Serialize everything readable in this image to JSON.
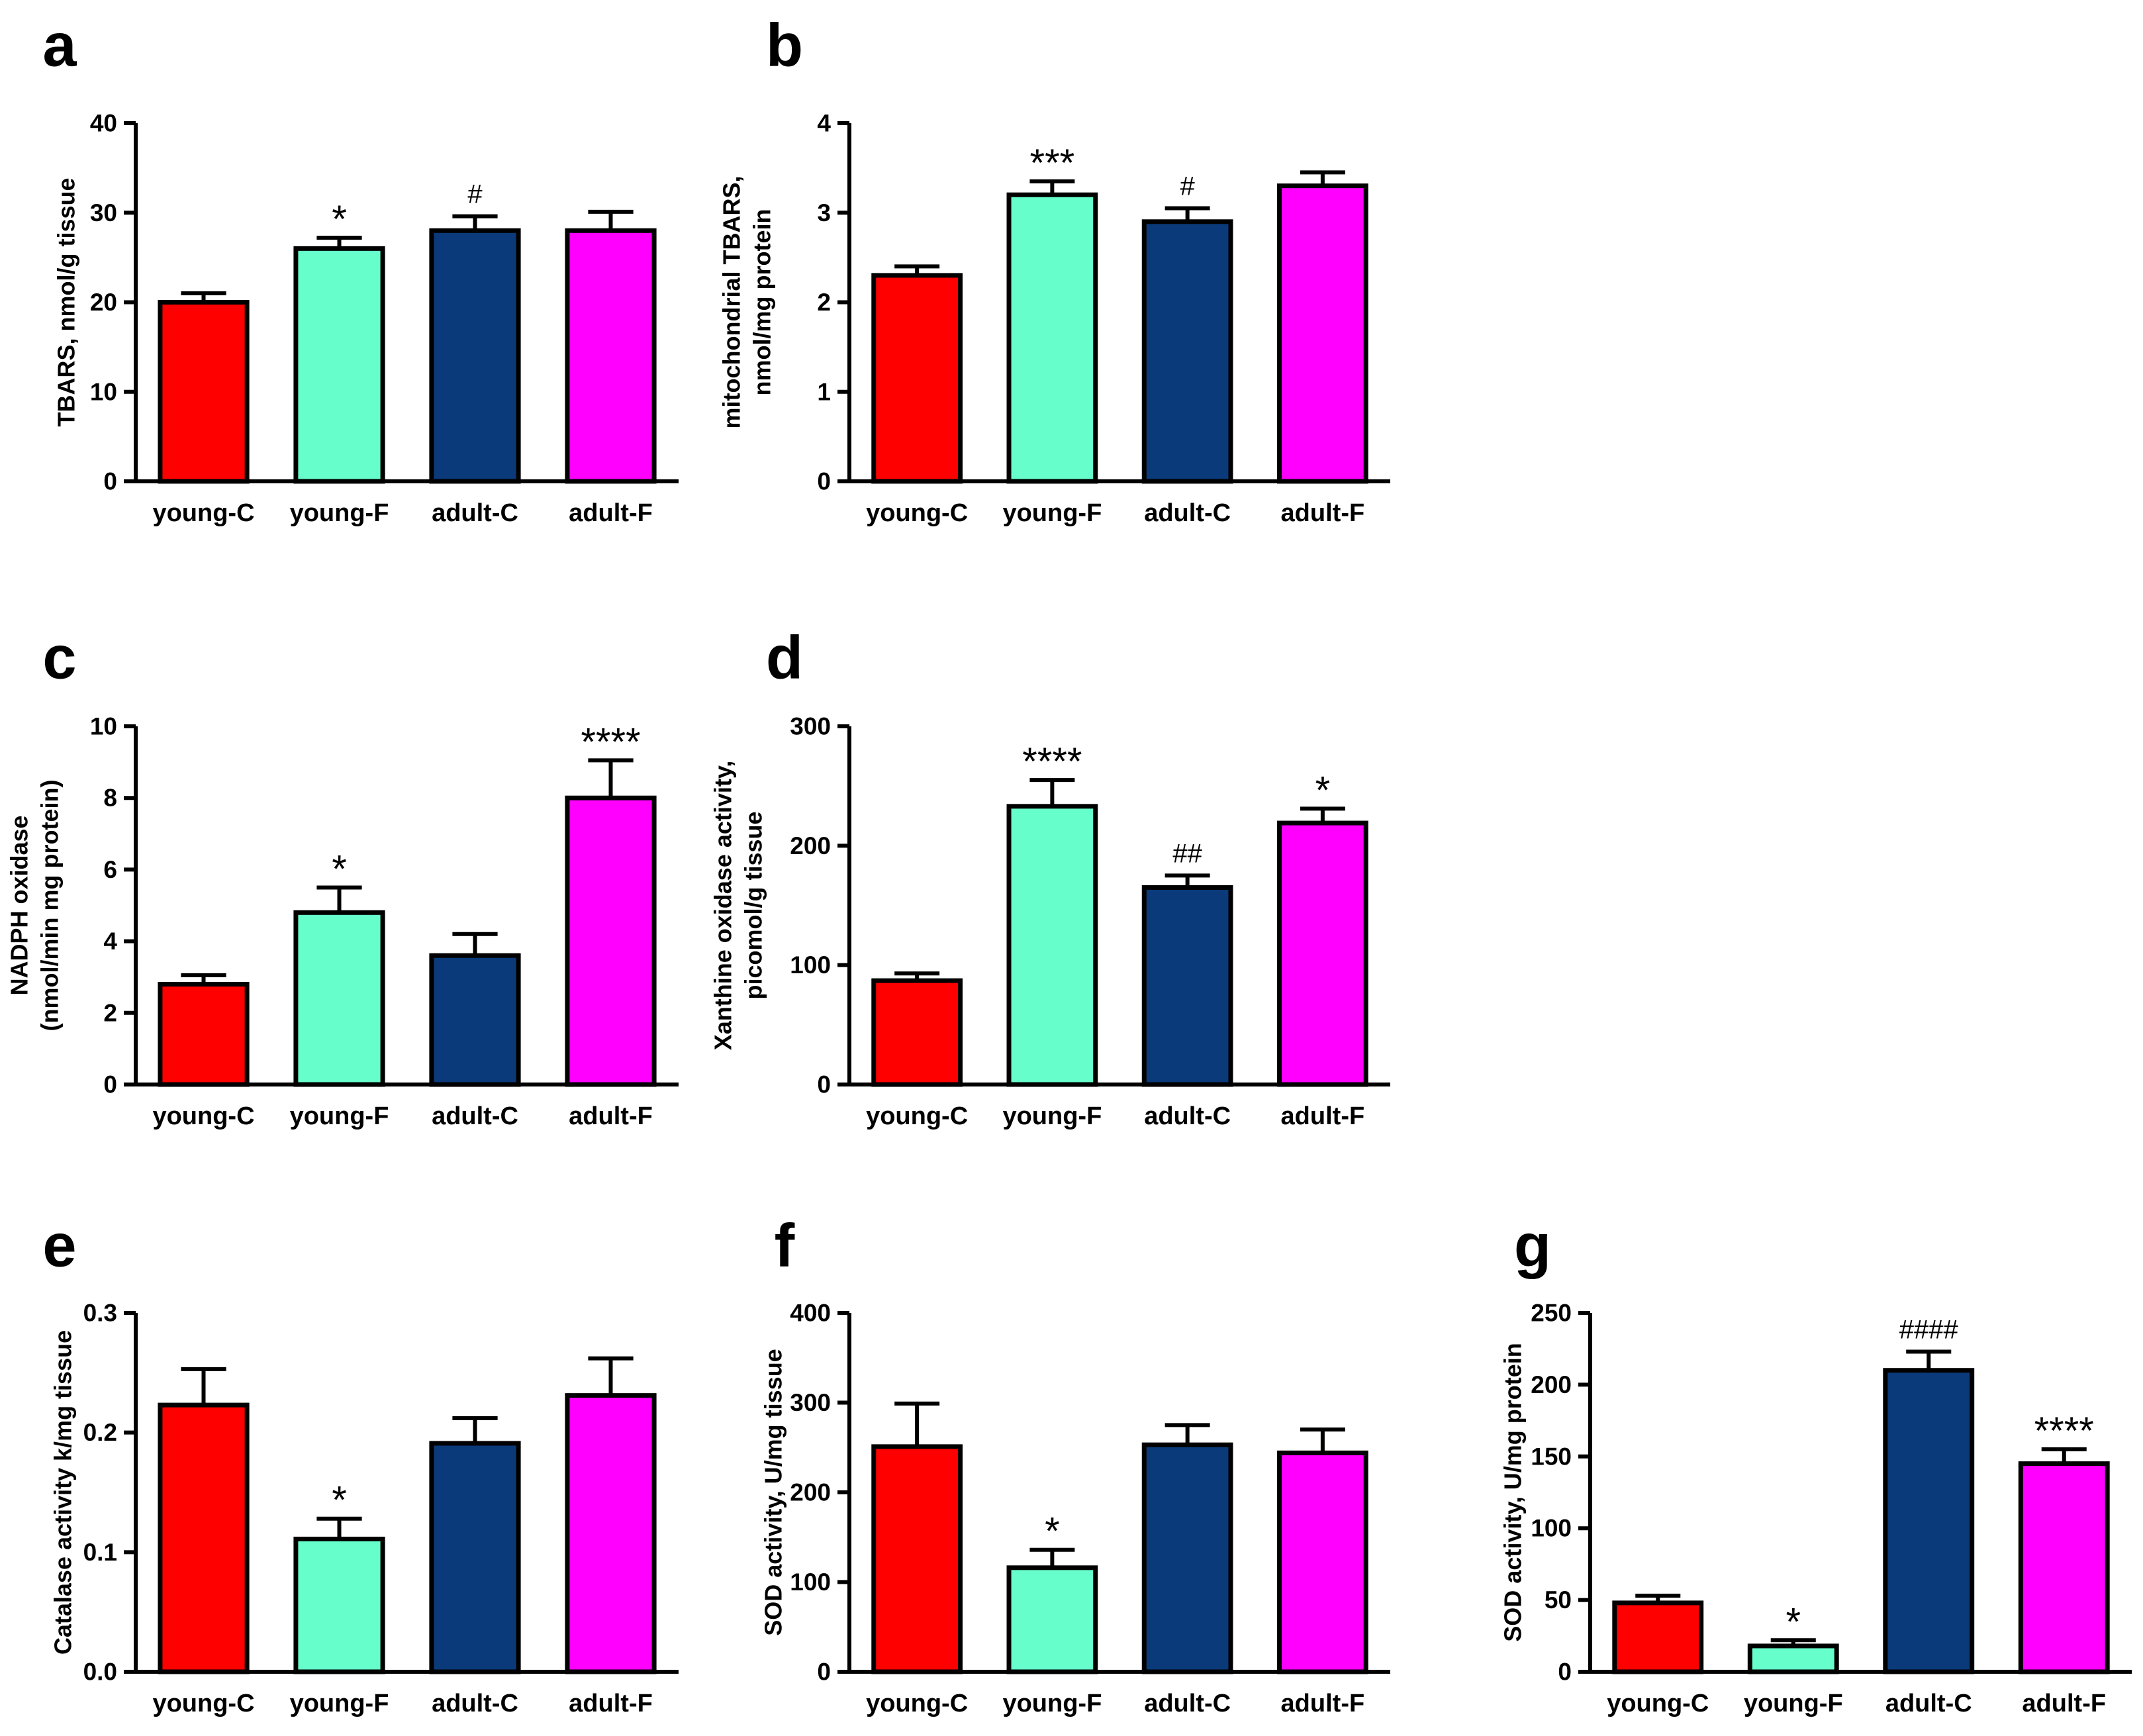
{
  "figure": {
    "colors": {
      "young-C": "#ff0000",
      "young-F": "#66ffcc",
      "adult-C": "#0a3a7a",
      "adult-F": "#ff00ff",
      "axis": "#000000"
    }
  },
  "chart_data": [
    {
      "panel": "a",
      "type": "bar",
      "categories": [
        "young-C",
        "young-F",
        "adult-C",
        "adult-F"
      ],
      "values": [
        20,
        26,
        28,
        28
      ],
      "errors": [
        1.0,
        1.2,
        1.6,
        2.1
      ],
      "annotations": [
        "",
        "*",
        "#",
        ""
      ],
      "ylabel": [
        "TBARS, nmol/g tissue"
      ],
      "ylim": [
        0,
        40
      ],
      "yticks": [
        0,
        10,
        20,
        30,
        40
      ],
      "ytick_labels": [
        "0",
        "10",
        "20",
        "30",
        "40"
      ]
    },
    {
      "panel": "b",
      "type": "bar",
      "categories": [
        "young-C",
        "young-F",
        "adult-C",
        "adult-F"
      ],
      "values": [
        2.3,
        3.2,
        2.9,
        3.3
      ],
      "errors": [
        0.1,
        0.15,
        0.15,
        0.15
      ],
      "annotations": [
        "",
        "***",
        "#",
        ""
      ],
      "ylabel": [
        "mitochondrial TBARS,",
        "nmol/mg protein"
      ],
      "ylim": [
        0,
        4
      ],
      "yticks": [
        0,
        1,
        2,
        3,
        4
      ],
      "ytick_labels": [
        "0",
        "1",
        "2",
        "3",
        "4"
      ]
    },
    {
      "panel": "c",
      "type": "bar",
      "categories": [
        "young-C",
        "young-F",
        "adult-C",
        "adult-F"
      ],
      "values": [
        2.8,
        4.8,
        3.6,
        8.0
      ],
      "errors": [
        0.25,
        0.7,
        0.6,
        1.05
      ],
      "annotations": [
        "",
        "*",
        "",
        "****"
      ],
      "ylabel": [
        "NADPH oxidase",
        "(nmol/min mg protein)"
      ],
      "ylim": [
        0,
        10
      ],
      "yticks": [
        0,
        2,
        4,
        6,
        8,
        10
      ],
      "ytick_labels": [
        "0",
        "2",
        "4",
        "6",
        "8",
        "10"
      ]
    },
    {
      "panel": "d",
      "type": "bar",
      "categories": [
        "young-C",
        "young-F",
        "adult-C",
        "adult-F"
      ],
      "values": [
        87,
        233,
        165,
        219
      ],
      "errors": [
        6,
        22,
        10,
        12
      ],
      "annotations": [
        "",
        "****",
        "##",
        "*"
      ],
      "ylabel": [
        "Xanthine oxidase activity,",
        "picomol/g tissue"
      ],
      "ylim": [
        0,
        300
      ],
      "yticks": [
        0,
        100,
        200,
        300
      ],
      "ytick_labels": [
        "0",
        "100",
        "200",
        "300"
      ]
    },
    {
      "panel": "e",
      "type": "bar",
      "categories": [
        "young-C",
        "young-F",
        "adult-C",
        "adult-F"
      ],
      "values": [
        0.223,
        0.111,
        0.191,
        0.231
      ],
      "errors": [
        0.03,
        0.017,
        0.021,
        0.031
      ],
      "annotations": [
        "",
        "*",
        "",
        ""
      ],
      "ylabel": [
        "Catalase activity k/mg tissue"
      ],
      "ylim": [
        0,
        0.3
      ],
      "yticks": [
        0,
        0.1,
        0.2,
        0.3
      ],
      "ytick_labels": [
        "0.0",
        "0.1",
        "0.2",
        "0.3"
      ]
    },
    {
      "panel": "f",
      "type": "bar",
      "categories": [
        "young-C",
        "young-F",
        "adult-C",
        "adult-F"
      ],
      "values": [
        251,
        116,
        253,
        244
      ],
      "errors": [
        48,
        20,
        22,
        26
      ],
      "annotations": [
        "",
        "*",
        "",
        ""
      ],
      "ylabel": [
        "SOD activity, U/mg tissue"
      ],
      "ylim": [
        0,
        400
      ],
      "yticks": [
        0,
        100,
        200,
        300,
        400
      ],
      "ytick_labels": [
        "0",
        "100",
        "200",
        "300",
        "400"
      ]
    },
    {
      "panel": "g",
      "type": "bar",
      "categories": [
        "young-C",
        "young-F",
        "adult-C",
        "adult-F"
      ],
      "values": [
        48,
        18,
        210,
        145
      ],
      "errors": [
        5,
        4,
        13,
        10
      ],
      "annotations": [
        "",
        "*",
        "####",
        "****"
      ],
      "ylabel": [
        "SOD activity, U/mg protein"
      ],
      "ylim": [
        0,
        250
      ],
      "yticks": [
        0,
        50,
        100,
        150,
        200,
        250
      ],
      "ytick_labels": [
        "0",
        "50",
        "100",
        "150",
        "200",
        "250"
      ]
    }
  ]
}
